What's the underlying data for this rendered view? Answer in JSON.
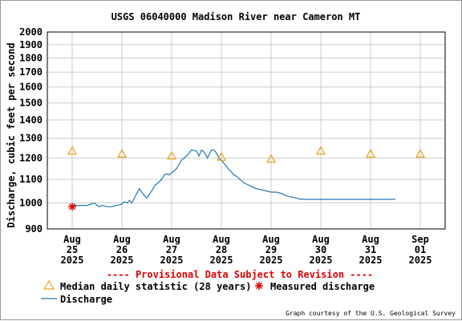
{
  "chart_data": {
    "type": "line",
    "title": "USGS 06040000 Madison River near Cameron MT",
    "ylabel": "Discharge, cubic feet per second",
    "ylim": [
      900,
      2000
    ],
    "y_scale": "log",
    "y_ticks": [
      "2000",
      "1900",
      "1800",
      "1700",
      "1600",
      "1500",
      "1400",
      "1300",
      "1200",
      "1100",
      "1000",
      "900"
    ],
    "y_tick_values": [
      2000,
      1900,
      1800,
      1700,
      1600,
      1500,
      1400,
      1300,
      1200,
      1100,
      1000,
      900
    ],
    "x_ticks": [
      {
        "month": "Aug",
        "day": "25",
        "year": "2025"
      },
      {
        "month": "Aug",
        "day": "26",
        "year": "2025"
      },
      {
        "month": "Aug",
        "day": "27",
        "year": "2025"
      },
      {
        "month": "Aug",
        "day": "28",
        "year": "2025"
      },
      {
        "month": "Aug",
        "day": "29",
        "year": "2025"
      },
      {
        "month": "Aug",
        "day": "30",
        "year": "2025"
      },
      {
        "month": "Aug",
        "day": "31",
        "year": "2025"
      },
      {
        "month": "Sep",
        "day": "01",
        "year": "2025"
      }
    ],
    "grid": true,
    "provisional_note": "---- Provisional Data Subject to Revision ----",
    "credit": "Graph courtesy of the U.S. Geological Survey",
    "colors": {
      "discharge": "#1f78b4",
      "median": "#e8a317",
      "measured": "#e00000",
      "note": "#dd0000"
    },
    "series": [
      {
        "name": "Discharge",
        "x_days": [
          0.0,
          0.3,
          0.45,
          0.5,
          0.55,
          0.6,
          0.7,
          0.8,
          0.9,
          1.0,
          1.05,
          1.1,
          1.15,
          1.2,
          1.25,
          1.3,
          1.35,
          1.4,
          1.45,
          1.5,
          1.55,
          1.6,
          1.65,
          1.7,
          1.75,
          1.8,
          1.85,
          1.9,
          1.95,
          2.0,
          2.1,
          2.2,
          2.3,
          2.4,
          2.5,
          2.55,
          2.6,
          2.65,
          2.7,
          2.72,
          2.75,
          2.8,
          2.85,
          2.9,
          2.95,
          3.0,
          3.05,
          3.1,
          3.15,
          3.2,
          3.25,
          3.3,
          3.35,
          3.4,
          3.45,
          3.5,
          3.6,
          3.7,
          3.8,
          3.9,
          4.0,
          4.1,
          4.2,
          4.3,
          4.4,
          4.5,
          4.6,
          4.7,
          4.8,
          4.9,
          5.0,
          5.1,
          5.2,
          5.3,
          5.4,
          5.5,
          5.6,
          5.7,
          5.8,
          5.9,
          6.0,
          6.1,
          6.2,
          6.3,
          6.4,
          6.5
        ],
        "values": [
          990,
          990,
          1000,
          990,
          985,
          990,
          985,
          985,
          990,
          995,
          1005,
          1000,
          1010,
          1000,
          1020,
          1040,
          1060,
          1045,
          1030,
          1020,
          1035,
          1050,
          1070,
          1080,
          1090,
          1100,
          1120,
          1125,
          1120,
          1130,
          1150,
          1190,
          1210,
          1240,
          1235,
          1210,
          1240,
          1230,
          1210,
          1200,
          1215,
          1240,
          1240,
          1225,
          1200,
          1190,
          1175,
          1160,
          1145,
          1135,
          1120,
          1115,
          1105,
          1095,
          1085,
          1080,
          1070,
          1060,
          1055,
          1050,
          1045,
          1045,
          1040,
          1030,
          1025,
          1020,
          1015,
          1015,
          1015,
          1015,
          1015,
          1015,
          1015,
          1015,
          1015,
          1015,
          1015,
          1015,
          1015,
          1015,
          1015,
          1015,
          1015,
          1015,
          1015,
          1015
        ]
      },
      {
        "name": "Median daily statistic (28 years)",
        "x_days": [
          0,
          1,
          2,
          3,
          4,
          5,
          6,
          7
        ],
        "values": [
          1235,
          1220,
          1210,
          1205,
          1195,
          1235,
          1220,
          1220
        ]
      },
      {
        "name": "Measured discharge",
        "x_days": [
          0
        ],
        "values": [
          985
        ]
      }
    ]
  }
}
